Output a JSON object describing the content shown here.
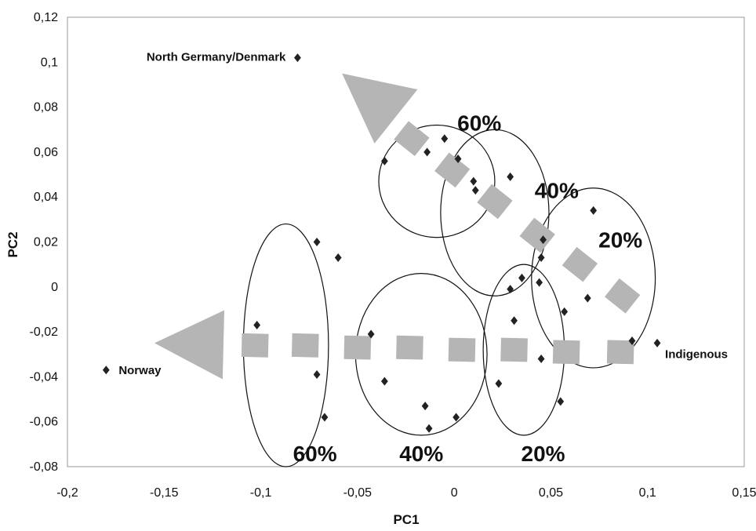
{
  "chart_data": {
    "type": "scatter",
    "xlabel": "PC1",
    "ylabel": "PC2",
    "xlim": [
      -0.2,
      0.15
    ],
    "ylim": [
      -0.08,
      0.12
    ],
    "x_ticks": [
      -0.2,
      -0.15,
      -0.1,
      -0.05,
      0,
      0.05,
      0.1,
      0.15
    ],
    "x_tick_labels": [
      "-0,2",
      "-0,15",
      "-0,1",
      "-0,05",
      "0",
      "0,05",
      "0,1",
      "0,15"
    ],
    "y_ticks": [
      -0.08,
      -0.06,
      -0.04,
      -0.02,
      0,
      0.02,
      0.04,
      0.06,
      0.08,
      0.1,
      0.12
    ],
    "y_tick_labels": [
      "-0,08",
      "-0,06",
      "-0,04",
      "-0,02",
      "0",
      "0,02",
      "0,04",
      "0,06",
      "0,08",
      "0,1",
      "0,12"
    ],
    "grid": false,
    "legend": "none",
    "colors": {
      "points": "#222222",
      "arrows": "#b5b5b5",
      "ellipses": "#111111",
      "frame": "#999999"
    },
    "points": [
      {
        "x": -0.081,
        "y": 0.102,
        "label": "North Germany/Denmark"
      },
      {
        "x": -0.18,
        "y": -0.037,
        "label": "Norway"
      },
      {
        "x": 0.105,
        "y": -0.025,
        "label": "Indigenous"
      },
      {
        "x": -0.036,
        "y": 0.056
      },
      {
        "x": -0.014,
        "y": 0.06
      },
      {
        "x": -0.005,
        "y": 0.066
      },
      {
        "x": 0.002,
        "y": 0.057
      },
      {
        "x": 0.01,
        "y": 0.047
      },
      {
        "x": 0.011,
        "y": 0.043
      },
      {
        "x": 0.029,
        "y": 0.049
      },
      {
        "x": 0.046,
        "y": 0.021
      },
      {
        "x": 0.045,
        "y": 0.013
      },
      {
        "x": 0.035,
        "y": 0.004
      },
      {
        "x": 0.029,
        "y": -0.001
      },
      {
        "x": 0.044,
        "y": 0.002
      },
      {
        "x": 0.031,
        "y": -0.015
      },
      {
        "x": 0.057,
        "y": -0.011
      },
      {
        "x": 0.072,
        "y": 0.034
      },
      {
        "x": 0.069,
        "y": -0.005
      },
      {
        "x": 0.092,
        "y": -0.024
      },
      {
        "x": 0.045,
        "y": -0.032
      },
      {
        "x": 0.023,
        "y": -0.043
      },
      {
        "x": 0.055,
        "y": -0.051
      },
      {
        "x": -0.071,
        "y": 0.02
      },
      {
        "x": -0.06,
        "y": 0.013
      },
      {
        "x": -0.102,
        "y": -0.017
      },
      {
        "x": -0.071,
        "y": -0.039
      },
      {
        "x": -0.067,
        "y": -0.058
      },
      {
        "x": -0.043,
        "y": -0.021
      },
      {
        "x": -0.036,
        "y": -0.042
      },
      {
        "x": -0.015,
        "y": -0.053
      },
      {
        "x": -0.013,
        "y": -0.063
      },
      {
        "x": 0.001,
        "y": -0.058
      }
    ],
    "ellipses": [
      {
        "cx": -0.087,
        "cy": -0.026,
        "rx": 0.022,
        "ry": 0.054
      },
      {
        "cx": -0.017,
        "cy": -0.03,
        "rx": 0.034,
        "ry": 0.036
      },
      {
        "cx": 0.036,
        "cy": -0.028,
        "rx": 0.021,
        "ry": 0.038
      },
      {
        "cx": -0.009,
        "cy": 0.047,
        "rx": 0.03,
        "ry": 0.025
      },
      {
        "cx": 0.021,
        "cy": 0.033,
        "rx": 0.028,
        "ry": 0.037
      },
      {
        "cx": 0.072,
        "cy": 0.004,
        "rx": 0.032,
        "ry": 0.04
      }
    ],
    "arrows": [
      {
        "from": [
          0.09,
          -0.03
        ],
        "to": [
          -0.155,
          -0.025
        ],
        "markers": [
          [
            -0.103,
            -0.026
          ],
          [
            -0.077,
            -0.026
          ],
          [
            -0.05,
            -0.027
          ],
          [
            -0.023,
            -0.027
          ],
          [
            0.004,
            -0.028
          ],
          [
            0.031,
            -0.028
          ],
          [
            0.058,
            -0.029
          ],
          [
            0.086,
            -0.029
          ]
        ]
      },
      {
        "from": [
          0.085,
          -0.003
        ],
        "to": [
          -0.058,
          0.095
        ],
        "markers": [
          [
            -0.022,
            0.066
          ],
          [
            -0.001,
            0.052
          ],
          [
            0.021,
            0.038
          ],
          [
            0.043,
            0.023
          ],
          [
            0.065,
            0.01
          ],
          [
            0.087,
            -0.004
          ]
        ]
      }
    ],
    "annotations": [
      {
        "text": "60%",
        "x": -0.072,
        "y": -0.074
      },
      {
        "text": "40%",
        "x": -0.017,
        "y": -0.074
      },
      {
        "text": "20%",
        "x": 0.046,
        "y": -0.074
      },
      {
        "text": "60%",
        "x": 0.013,
        "y": 0.073
      },
      {
        "text": "40%",
        "x": 0.053,
        "y": 0.043
      },
      {
        "text": "20%",
        "x": 0.086,
        "y": 0.021
      }
    ]
  }
}
